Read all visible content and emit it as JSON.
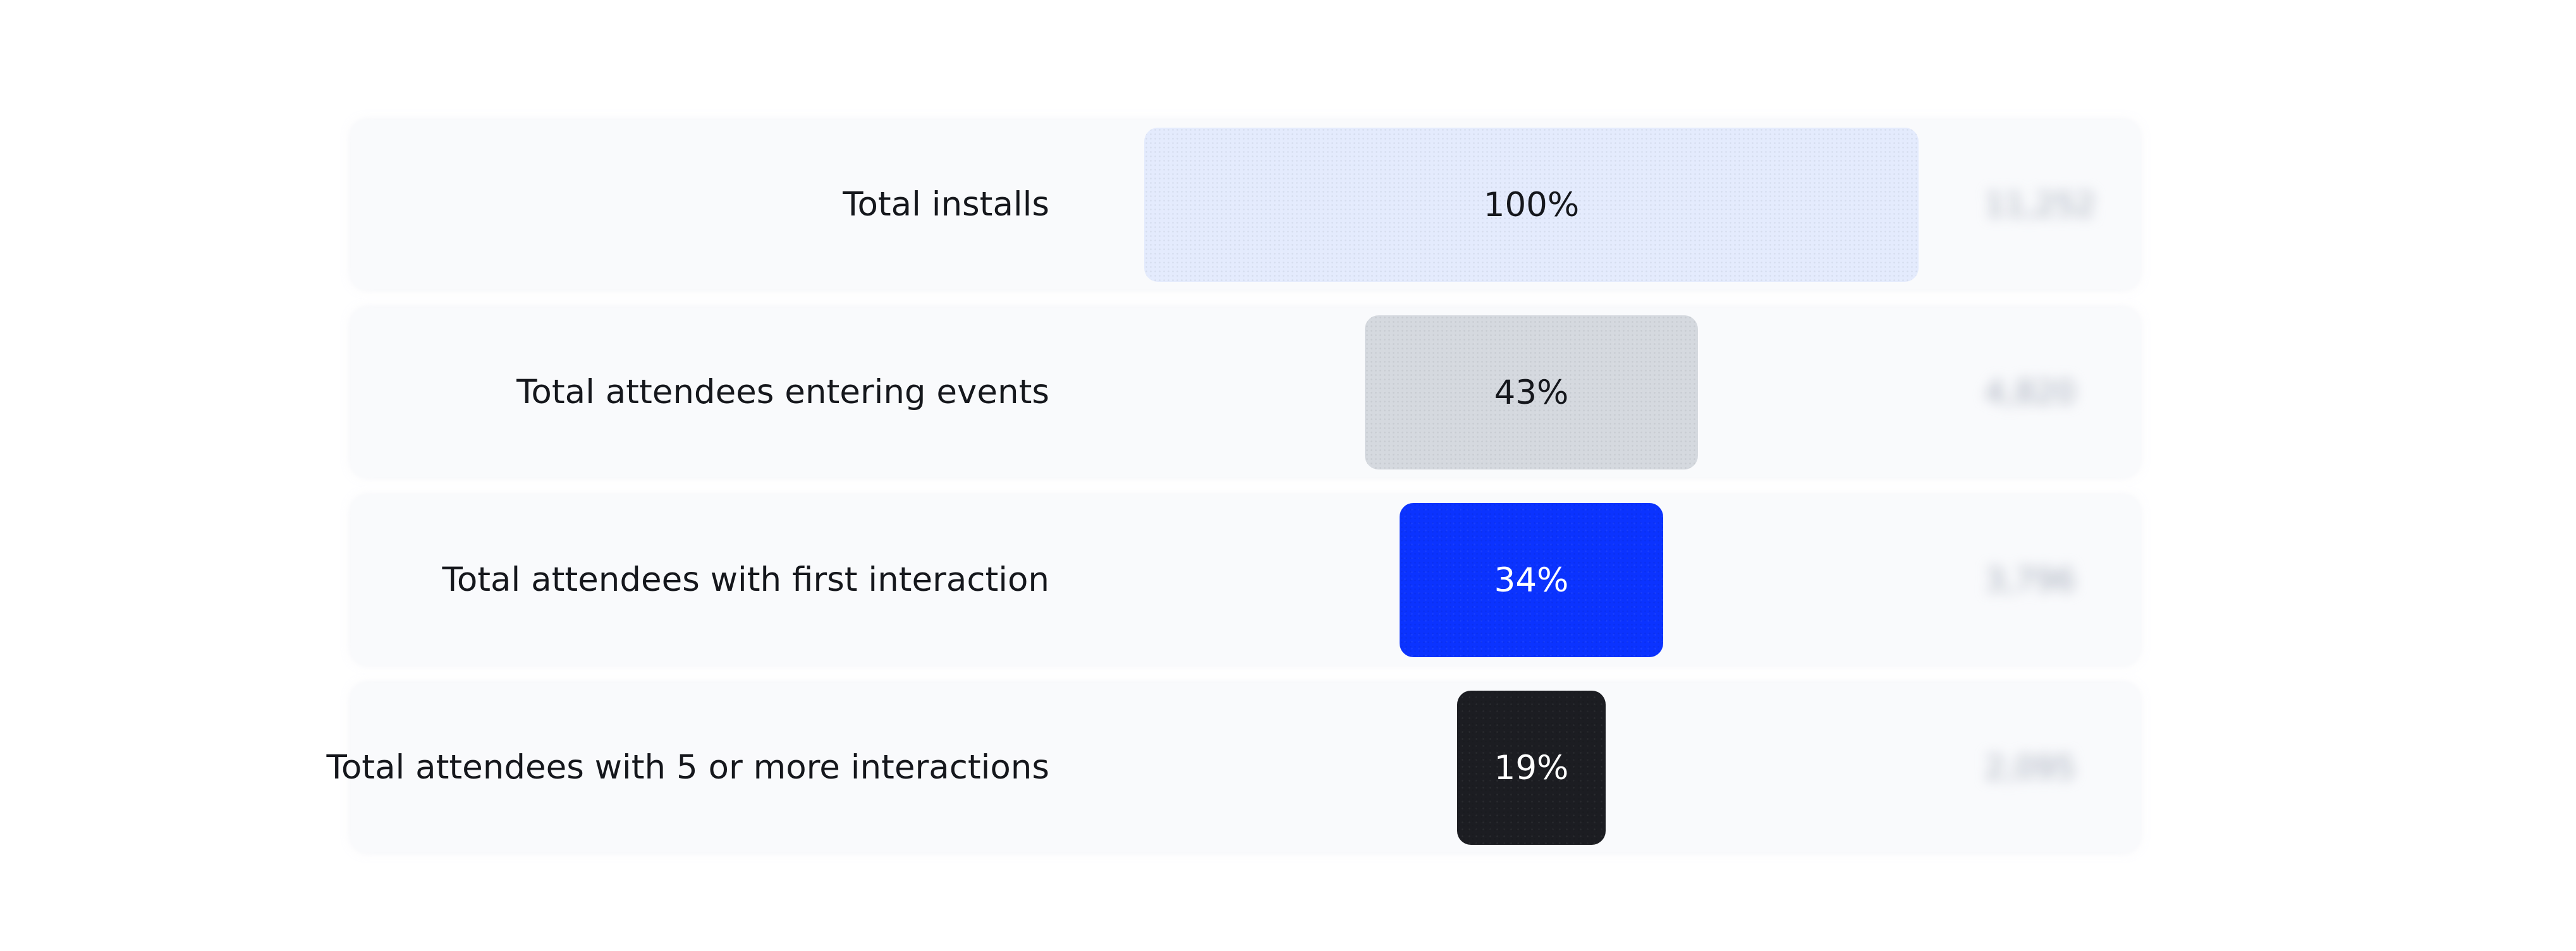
{
  "chart_data": {
    "type": "bar",
    "orientation": "horizontal-funnel",
    "title": "",
    "xlabel": "",
    "ylabel": "",
    "xlim": [
      0,
      100
    ],
    "grid": false,
    "categories": [
      "Total installs",
      "Total attendees entering events",
      "Total attendees with first interaction",
      "Total attendees with 5 or more interactions"
    ],
    "values": [
      100,
      43,
      34,
      19
    ],
    "value_labels": [
      "100%",
      "43%",
      "34%",
      "19%"
    ],
    "counts": [
      "11,252",
      "4,820",
      "3,796",
      "2,095"
    ],
    "colors": [
      "#e4ebfd",
      "#d5d9df",
      "#0b33ff",
      "#1c1d22"
    ],
    "label_colors": [
      "#15171c",
      "#15171c",
      "#ffffff",
      "#ffffff"
    ]
  }
}
